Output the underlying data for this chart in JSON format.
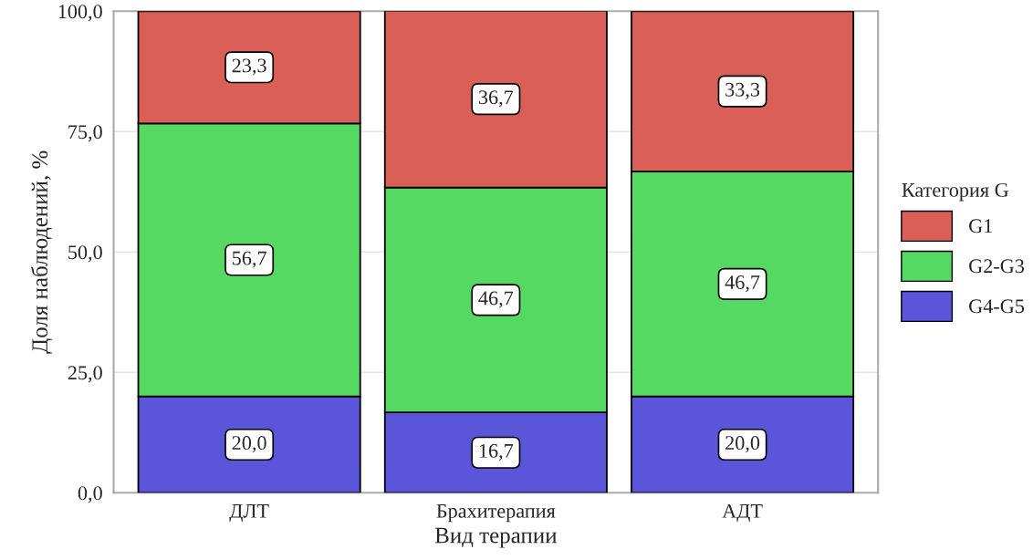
{
  "chart_data": {
    "type": "bar",
    "stacked": true,
    "xlabel": "Вид терапии",
    "ylabel": "Доля наблюдений, %",
    "legend_title": "Категория G",
    "legend": "right",
    "grid": true,
    "categories": [
      "ДЛТ",
      "Брахитерапия",
      "АДТ"
    ],
    "series": [
      {
        "name": "G4-G5",
        "color": "#5b55d9",
        "values": [
          20.0,
          16.7,
          20.0
        ],
        "value_labels": [
          "20,0",
          "16,7",
          "20,0"
        ]
      },
      {
        "name": "G2-G3",
        "color": "#55d963",
        "values": [
          56.7,
          46.7,
          46.7
        ],
        "value_labels": [
          "56,7",
          "46,7",
          "46,7"
        ]
      },
      {
        "name": "G1",
        "color": "#d95f57",
        "values": [
          23.3,
          36.7,
          33.3
        ],
        "value_labels": [
          "23,3",
          "36,7",
          "33,3"
        ]
      }
    ],
    "ylim": [
      0,
      100
    ],
    "yticks": [
      {
        "value": 0,
        "label": "0,0"
      },
      {
        "value": 25,
        "label": "25,0"
      },
      {
        "value": 50,
        "label": "50,0"
      },
      {
        "value": 75,
        "label": "75,0"
      },
      {
        "value": 100,
        "label": "100,0"
      }
    ]
  }
}
